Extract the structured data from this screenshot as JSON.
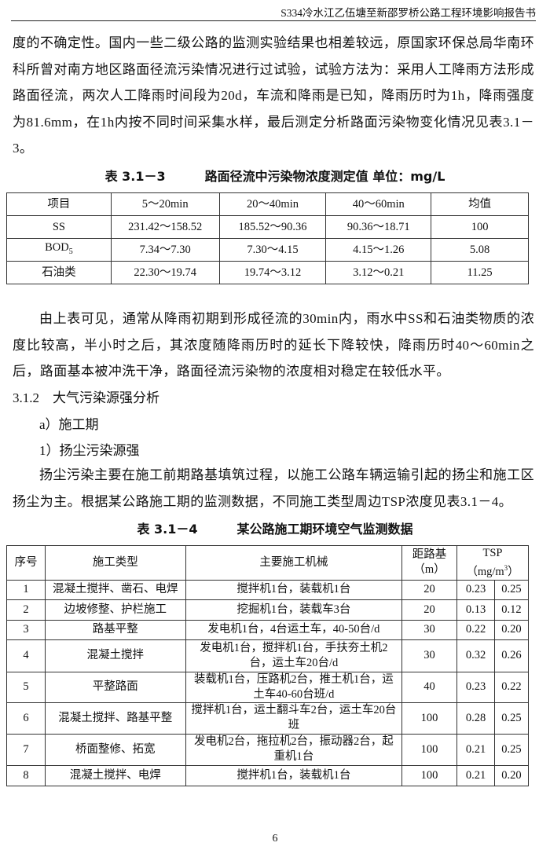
{
  "header": {
    "title": "S334冷水江乙伍塘至新邵罗桥公路工程环境影响报告书"
  },
  "para1": "度的不确定性。国内一些二级公路的监测实验结果也相差较远，原国家环保总局华南环科所曾对南方地区路面径流污染情况进行过试验，试验方法为：采用人工降雨方法形成路面径流，两次人工降雨时间段为20d，车流和降雨是已知，降雨历时为1h，降雨强度为81.6mm，在1h内按不同时间采集水样，最后测定分析路面污染物变化情况见表3.1－3。",
  "table1": {
    "caption_no": "表 3.1－3",
    "caption_title": "路面径流中污染物浓度测定值  单位：mg/L",
    "headers": [
      "项目",
      "5～20min",
      "20～40min",
      "40～60min",
      "均值"
    ],
    "rows": [
      [
        "SS",
        "231.42～158.52",
        "185.52～90.36",
        "90.36～18.71",
        "100"
      ],
      [
        "BOD",
        "7.34～7.30",
        "7.30～4.15",
        "4.15～1.26",
        "5.08"
      ],
      [
        "石油类",
        "22.30～19.74",
        "19.74～3.12",
        "3.12～0.21",
        "11.25"
      ]
    ],
    "bod_sub": "5"
  },
  "para2": "由上表可见，通常从降雨初期到形成径流的30min内，雨水中SS和石油类物质的浓度比较高，半小时之后，其浓度随降雨历时的延长下降较快，降雨历时40～60min之后，路面基本被冲洗干净，路面径流污染物的浓度相对稳定在较低水平。",
  "section": "3.1.2　大气污染源强分析",
  "sub_a": "a）施工期",
  "sub_1": "1）扬尘污染源强",
  "para3": "扬尘污染主要在施工前期路基填筑过程，以施工公路车辆运输引起的扬尘和施工区扬尘为主。根据某公路施工期的监测数据，不同施工类型周边TSP浓度见表3.1－4。",
  "table2": {
    "caption_no": "表 3.1－4",
    "caption_title": "某公路施工期环境空气监测数据",
    "headers": {
      "no": "序号",
      "type": "施工类型",
      "machines": "主要施工机械",
      "dist1": "距路基",
      "dist2": "（m）",
      "tsp1": "TSP",
      "tsp2": "（mg/m",
      "tsp_sup": "3",
      "tsp3": "）"
    },
    "rows": [
      [
        "1",
        "混凝土搅拌、凿石、电焊",
        "搅拌机1台，装载机1台",
        "20",
        "0.23",
        "0.25"
      ],
      [
        "2",
        "边坡修整、护栏施工",
        "挖掘机1台，装载车3台",
        "20",
        "0.13",
        "0.12"
      ],
      [
        "3",
        "路基平整",
        "发电机1台，4台运土车，40-50台/d",
        "30",
        "0.22",
        "0.20"
      ],
      [
        "4",
        "混凝土搅拌",
        "发电机1台，搅拌机1台，手扶夯土机2台，运土车20台/d",
        "30",
        "0.32",
        "0.26"
      ],
      [
        "5",
        "平整路面",
        "装载机1台，压路机2台，推土机1台，运土车40-60台班/d",
        "40",
        "0.23",
        "0.22"
      ],
      [
        "6",
        "混凝土搅拌、路基平整",
        "搅拌机1台，运土翻斗车2台，运土车20台班",
        "100",
        "0.28",
        "0.25"
      ],
      [
        "7",
        "桥面整修、拓宽",
        "发电机2台，拖拉机2台，振动器2台，起重机1台",
        "100",
        "0.21",
        "0.25"
      ],
      [
        "8",
        "混凝土搅拌、电焊",
        "搅拌机1台，装载机1台",
        "100",
        "0.21",
        "0.20"
      ]
    ]
  },
  "page_number": "6"
}
